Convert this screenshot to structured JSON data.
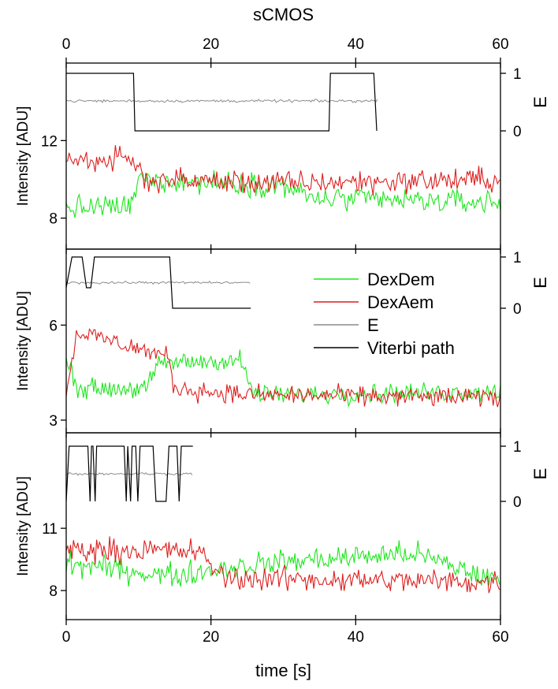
{
  "chart_data": {
    "type": "line",
    "title": "sCMOS",
    "xlabel": "time [s]",
    "xlim": [
      0,
      60
    ],
    "x_ticks": [
      0,
      20,
      40,
      60
    ],
    "x_tick_labels": [
      "0",
      "20",
      "40",
      "60"
    ],
    "legend": {
      "placement": "center-right of middle panel",
      "entries": [
        {
          "name": "DexDem",
          "color": "#1ee61e"
        },
        {
          "name": "DexAem",
          "color": "#dd1f1f"
        },
        {
          "name": "E",
          "color": "#8c8c8c"
        },
        {
          "name": "Viterbi path",
          "color": "#000000"
        }
      ]
    },
    "colors": {
      "DexDem": "#1ee61e",
      "DexAem": "#dd1f1f",
      "E": "#8c8c8c",
      "Viterbi": "#000000"
    },
    "grid": false,
    "panels": [
      {
        "ylabel": "Intensity [ADU]",
        "y2label": "E",
        "ylim": [
          6.4,
          16.0
        ],
        "yticks": [
          8,
          12
        ],
        "ytick_labels": [
          "8",
          "12"
        ],
        "e_ticks": [
          0,
          1
        ],
        "e_tick_labels": [
          "0",
          "1"
        ],
        "trace_end": 60,
        "e_end": 43,
        "e_mean": 0.52,
        "viterbi": [
          [
            0,
            1
          ],
          [
            9.3,
            1
          ],
          [
            9.5,
            0
          ],
          [
            36.3,
            0
          ],
          [
            36.5,
            1
          ],
          [
            42.5,
            1
          ],
          [
            42.9,
            0
          ]
        ],
        "green_profile": [
          [
            0,
            8.5
          ],
          [
            9,
            8.6
          ],
          [
            10,
            10.0
          ],
          [
            30,
            9.7
          ],
          [
            34,
            9.0
          ],
          [
            60,
            8.8
          ]
        ],
        "red_profile": [
          [
            0,
            11.0
          ],
          [
            9,
            11.0
          ],
          [
            11,
            10.0
          ],
          [
            30,
            9.8
          ],
          [
            60,
            10.0
          ]
        ],
        "noise": 0.9
      },
      {
        "ylabel": "Intensity [ADU]",
        "y2label": "E",
        "ylim": [
          2.6,
          8.4
        ],
        "yticks": [
          3,
          6
        ],
        "ytick_labels": [
          "3",
          "6"
        ],
        "e_ticks": [
          0,
          1
        ],
        "e_tick_labels": [
          "0",
          "1"
        ],
        "trace_end": 60,
        "e_end": 25.5,
        "e_mean": 0.5,
        "viterbi": [
          [
            0,
            0.4
          ],
          [
            0.8,
            1
          ],
          [
            2.2,
            1
          ],
          [
            2.8,
            0.4
          ],
          [
            3.4,
            0.4
          ],
          [
            3.9,
            1
          ],
          [
            14.3,
            1
          ],
          [
            14.7,
            0
          ],
          [
            25.5,
            0
          ]
        ],
        "green_profile": [
          [
            0,
            5.2
          ],
          [
            1.5,
            4.0
          ],
          [
            11,
            4.0
          ],
          [
            13,
            4.8
          ],
          [
            24,
            4.9
          ],
          [
            26,
            3.8
          ],
          [
            60,
            3.9
          ]
        ],
        "red_profile": [
          [
            0,
            3.9
          ],
          [
            1.5,
            5.8
          ],
          [
            14,
            5.0
          ],
          [
            15,
            4.0
          ],
          [
            25,
            3.8
          ],
          [
            60,
            3.7
          ]
        ],
        "noise": 0.45
      },
      {
        "ylabel": "Intensity [ADU]",
        "y2label": "E",
        "ylim": [
          6.6,
          15.6
        ],
        "yticks": [
          8,
          11
        ],
        "ytick_labels": [
          "8",
          "11"
        ],
        "e_ticks": [
          0,
          1
        ],
        "e_tick_labels": [
          "0",
          "1"
        ],
        "trace_end": 60,
        "e_end": 17.5,
        "e_mean": 0.5,
        "viterbi": [
          [
            0,
            0
          ],
          [
            0.4,
            1
          ],
          [
            3.0,
            1
          ],
          [
            3.3,
            0
          ],
          [
            3.5,
            1
          ],
          [
            3.7,
            1
          ],
          [
            4.0,
            0
          ],
          [
            4.2,
            1
          ],
          [
            8.0,
            1
          ],
          [
            8.3,
            0
          ],
          [
            8.5,
            1
          ],
          [
            8.9,
            0
          ],
          [
            9.1,
            1
          ],
          [
            9.6,
            1
          ],
          [
            9.9,
            0
          ],
          [
            10.2,
            1
          ],
          [
            12.0,
            1
          ],
          [
            12.4,
            0
          ],
          [
            13.8,
            0
          ],
          [
            14.2,
            1
          ],
          [
            15.3,
            1
          ],
          [
            15.6,
            0
          ],
          [
            15.9,
            1
          ],
          [
            17.5,
            1
          ]
        ],
        "green_profile": [
          [
            0,
            9.3
          ],
          [
            15,
            8.7
          ],
          [
            20,
            9.0
          ],
          [
            30,
            9.4
          ],
          [
            48,
            9.8
          ],
          [
            60,
            8.4
          ]
        ],
        "red_profile": [
          [
            0,
            10.0
          ],
          [
            18,
            9.9
          ],
          [
            22,
            8.6
          ],
          [
            60,
            8.4
          ]
        ],
        "noise": 0.85
      }
    ]
  }
}
